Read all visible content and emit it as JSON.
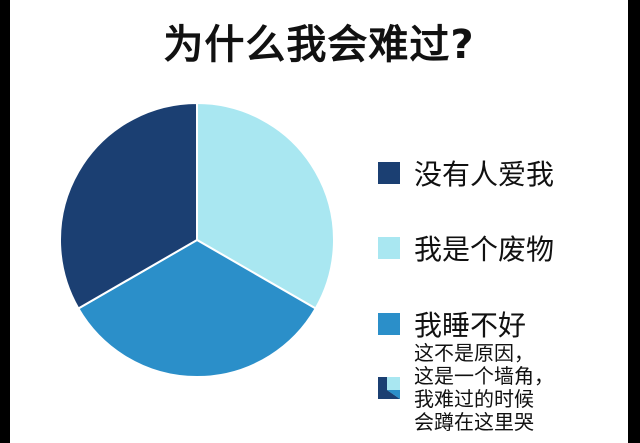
{
  "chart_data": {
    "type": "pie",
    "title": "为什么我会难过?",
    "categories": [
      "没有人爱我",
      "我是个废物",
      "我睡不好"
    ],
    "values": [
      1,
      1,
      1
    ],
    "colors": [
      "#1b3f72",
      "#a9e7f1",
      "#2b8fc9"
    ],
    "legend": "right",
    "legend_extra": {
      "lines": [
        "这不是原因，",
        "这是一个墙角，",
        "我难过的时候",
        "会蹲在这里哭"
      ],
      "icon": "corner-icon"
    }
  }
}
